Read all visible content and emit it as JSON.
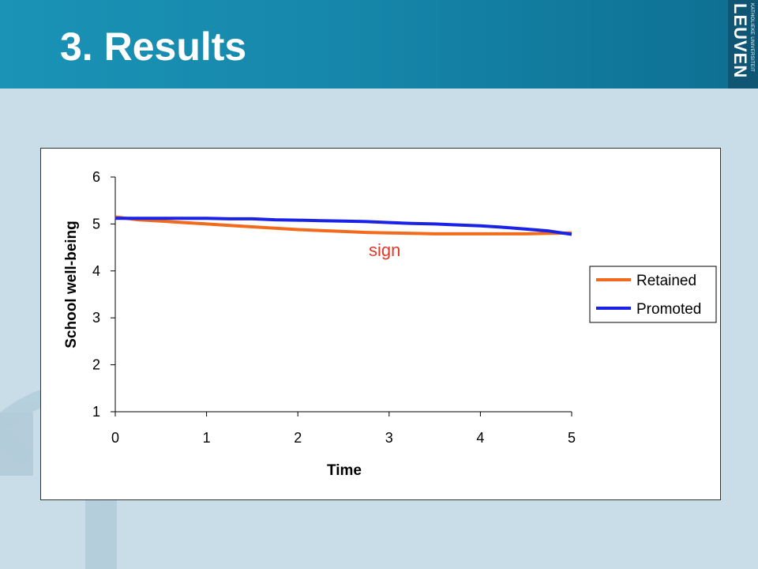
{
  "slide": {
    "title": "3. Results"
  },
  "logo": {
    "small_text": "KATHOLIEKE UNIVERSITEIT",
    "big_text": "LEUVEN"
  },
  "colors": {
    "header": "#1687aa",
    "background": "#c9dde8",
    "retained": "#f26b1d",
    "promoted": "#1a22e6",
    "annotation": "#e03a2a"
  },
  "chart_data": {
    "type": "line",
    "xlabel": "Time",
    "ylabel": "School well-being",
    "xlim": [
      0,
      5
    ],
    "ylim": [
      1,
      6
    ],
    "x_ticks": [
      "0",
      "1",
      "2",
      "3",
      "4",
      "5"
    ],
    "y_ticks": [
      "1",
      "2",
      "3",
      "4",
      "5",
      "6"
    ],
    "grid": false,
    "legend_position": "right",
    "annotation": "sign",
    "series": [
      {
        "name": "Retained",
        "color": "#f26b1d",
        "x": [
          0,
          0.25,
          0.5,
          0.75,
          1,
          1.25,
          1.5,
          1.75,
          2,
          2.25,
          2.5,
          2.75,
          3,
          3.25,
          3.5,
          3.75,
          4,
          4.25,
          4.5,
          4.75,
          5
        ],
        "y": [
          5.15,
          5.09,
          5.06,
          5.03,
          5.0,
          4.97,
          4.94,
          4.91,
          4.88,
          4.86,
          4.84,
          4.82,
          4.81,
          4.8,
          4.79,
          4.79,
          4.79,
          4.79,
          4.79,
          4.8,
          4.81
        ]
      },
      {
        "name": "Promoted",
        "color": "#1a22e6",
        "x": [
          0,
          0.25,
          0.5,
          0.75,
          1,
          1.25,
          1.5,
          1.75,
          2,
          2.25,
          2.5,
          2.75,
          3,
          3.25,
          3.5,
          3.75,
          4,
          4.25,
          4.5,
          4.75,
          5
        ],
        "y": [
          5.12,
          5.12,
          5.12,
          5.12,
          5.12,
          5.11,
          5.11,
          5.09,
          5.08,
          5.07,
          5.06,
          5.05,
          5.03,
          5.01,
          5.0,
          4.98,
          4.96,
          4.93,
          4.89,
          4.85,
          4.78
        ]
      }
    ]
  }
}
